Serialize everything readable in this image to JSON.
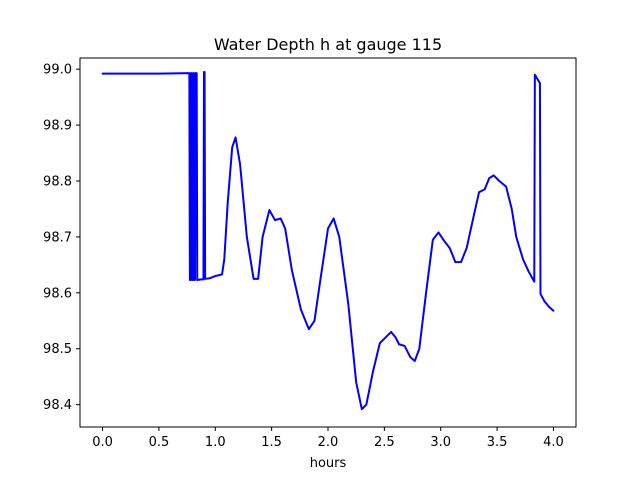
{
  "chart_data": {
    "type": "line",
    "title": "Water Depth h at gauge 115",
    "xlabel": "hours",
    "ylabel": "",
    "xlim": [
      -0.2,
      4.2
    ],
    "ylim": [
      98.36,
      99.02
    ],
    "x_ticks": [
      0.0,
      0.5,
      1.0,
      1.5,
      2.0,
      2.5,
      3.0,
      3.5,
      4.0
    ],
    "x_tick_labels": [
      "0.0",
      "0.5",
      "1.0",
      "1.5",
      "2.0",
      "2.5",
      "3.0",
      "3.5",
      "4.0"
    ],
    "y_ticks": [
      98.4,
      98.5,
      98.6,
      98.7,
      98.8,
      98.9,
      99.0
    ],
    "y_tick_labels": [
      "98.4",
      "98.5",
      "98.6",
      "98.7",
      "98.8",
      "98.9",
      "99.0"
    ],
    "grid": false,
    "series": [
      {
        "color": "#0000ff",
        "points": [
          [
            0.0,
            98.992
          ],
          [
            0.5,
            98.992
          ],
          [
            0.77,
            98.993
          ],
          [
            0.775,
            98.623
          ],
          [
            0.78,
            98.623
          ],
          [
            0.785,
            98.993
          ],
          [
            0.79,
            98.993
          ],
          [
            0.795,
            98.623
          ],
          [
            0.8,
            98.623
          ],
          [
            0.805,
            98.993
          ],
          [
            0.81,
            98.993
          ],
          [
            0.815,
            98.623
          ],
          [
            0.82,
            98.623
          ],
          [
            0.825,
            98.993
          ],
          [
            0.835,
            98.993
          ],
          [
            0.84,
            98.623
          ],
          [
            0.88,
            98.624
          ],
          [
            0.895,
            98.624
          ],
          [
            0.9,
            98.995
          ],
          [
            0.905,
            98.995
          ],
          [
            0.91,
            98.625
          ],
          [
            0.95,
            98.626
          ],
          [
            1.0,
            98.63
          ],
          [
            1.06,
            98.633
          ],
          [
            1.08,
            98.66
          ],
          [
            1.11,
            98.76
          ],
          [
            1.15,
            98.86
          ],
          [
            1.18,
            98.878
          ],
          [
            1.22,
            98.83
          ],
          [
            1.28,
            98.7
          ],
          [
            1.34,
            98.625
          ],
          [
            1.38,
            98.625
          ],
          [
            1.42,
            98.7
          ],
          [
            1.48,
            98.748
          ],
          [
            1.53,
            98.73
          ],
          [
            1.58,
            98.733
          ],
          [
            1.62,
            98.715
          ],
          [
            1.68,
            98.64
          ],
          [
            1.76,
            98.57
          ],
          [
            1.83,
            98.535
          ],
          [
            1.88,
            98.55
          ],
          [
            1.93,
            98.62
          ],
          [
            2.0,
            98.715
          ],
          [
            2.05,
            98.733
          ],
          [
            2.1,
            98.7
          ],
          [
            2.18,
            98.58
          ],
          [
            2.25,
            98.44
          ],
          [
            2.3,
            98.392
          ],
          [
            2.34,
            98.4
          ],
          [
            2.4,
            98.46
          ],
          [
            2.46,
            98.51
          ],
          [
            2.52,
            98.522
          ],
          [
            2.56,
            98.53
          ],
          [
            2.6,
            98.52
          ],
          [
            2.63,
            98.508
          ],
          [
            2.68,
            98.505
          ],
          [
            2.73,
            98.485
          ],
          [
            2.77,
            98.478
          ],
          [
            2.81,
            98.5
          ],
          [
            2.87,
            98.6
          ],
          [
            2.93,
            98.695
          ],
          [
            2.98,
            98.708
          ],
          [
            3.03,
            98.693
          ],
          [
            3.08,
            98.68
          ],
          [
            3.13,
            98.655
          ],
          [
            3.18,
            98.655
          ],
          [
            3.23,
            98.68
          ],
          [
            3.29,
            98.735
          ],
          [
            3.34,
            98.78
          ],
          [
            3.39,
            98.785
          ],
          [
            3.43,
            98.805
          ],
          [
            3.47,
            98.81
          ],
          [
            3.52,
            98.8
          ],
          [
            3.58,
            98.79
          ],
          [
            3.63,
            98.75
          ],
          [
            3.67,
            98.7
          ],
          [
            3.73,
            98.66
          ],
          [
            3.78,
            98.638
          ],
          [
            3.83,
            98.62
          ],
          [
            3.835,
            98.99
          ],
          [
            3.88,
            98.975
          ],
          [
            3.885,
            98.598
          ],
          [
            3.92,
            98.585
          ],
          [
            3.96,
            98.575
          ],
          [
            4.0,
            98.568
          ]
        ]
      }
    ]
  }
}
